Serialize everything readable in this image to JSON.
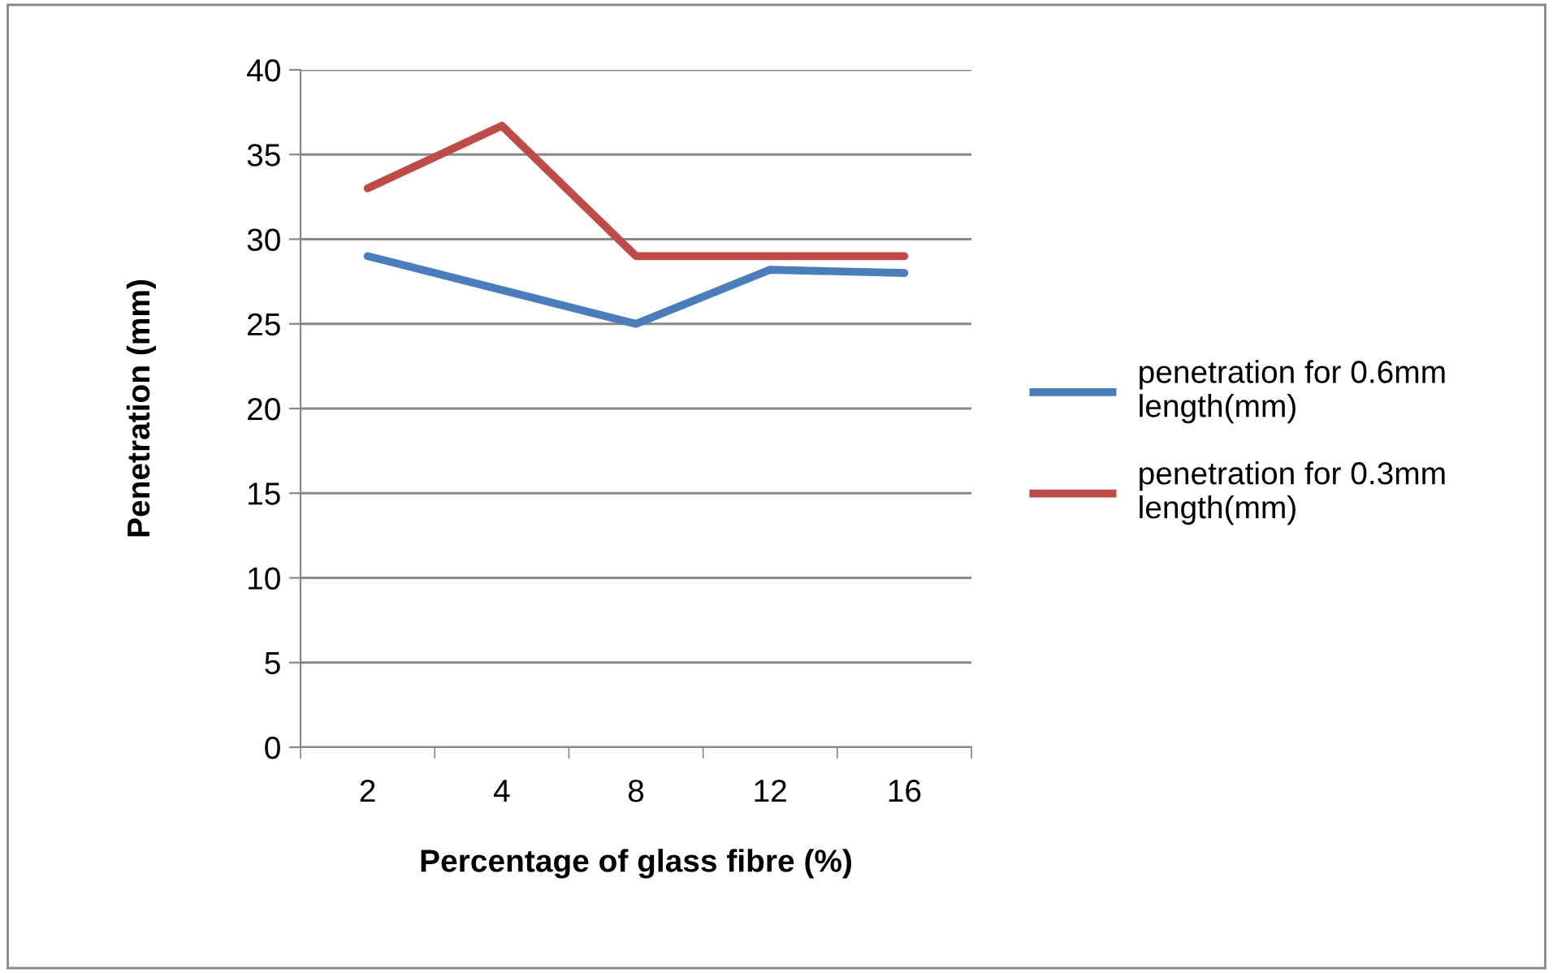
{
  "chart_data": {
    "type": "line",
    "xlabel": "Percentage of glass fibre (%)",
    "ylabel": "Penetration (mm)",
    "categories": [
      "2",
      "4",
      "8",
      "12",
      "16"
    ],
    "series": [
      {
        "name": "penetration for 0.6mm length(mm)",
        "color": "#4a7ebb",
        "values": [
          29,
          27,
          25,
          28.2,
          28
        ]
      },
      {
        "name": "penetration for 0.3mm length(mm)",
        "color": "#be4b48",
        "values": [
          33,
          36.7,
          29,
          29,
          29
        ]
      }
    ],
    "ylim": [
      0,
      40
    ],
    "yticks": [
      0,
      5,
      10,
      15,
      20,
      25,
      30,
      35,
      40
    ],
    "grid": "y",
    "legend": "right",
    "marker": "none",
    "line_style": "solid"
  }
}
